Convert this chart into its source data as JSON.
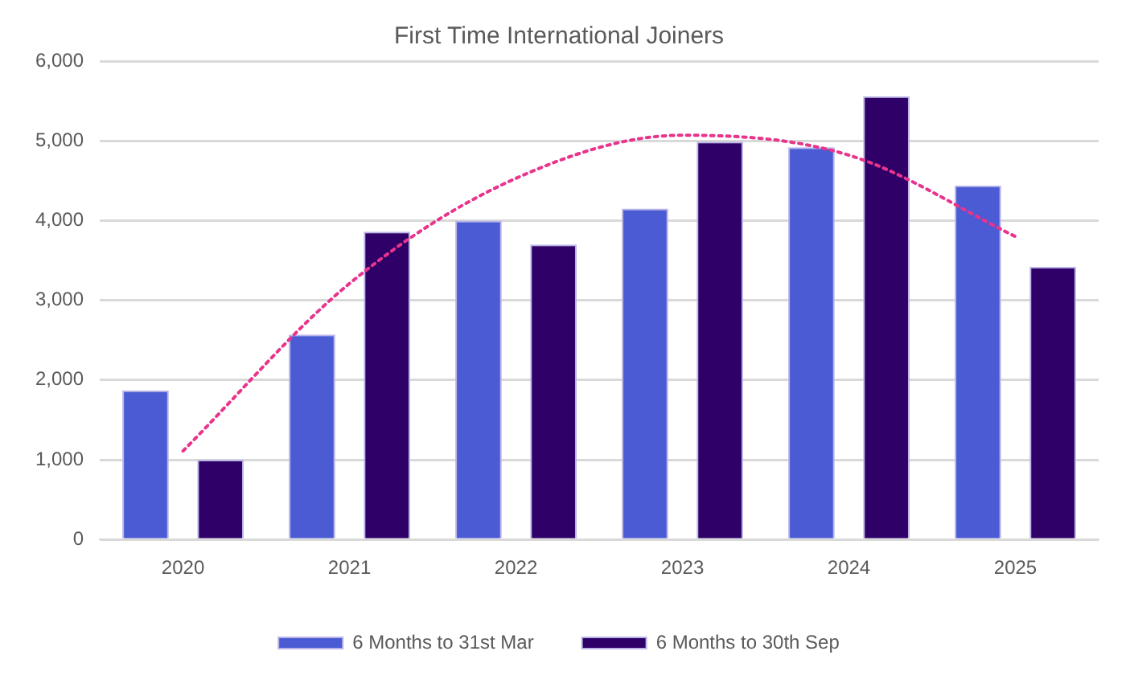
{
  "chart_data": {
    "type": "bar",
    "title": "First Time International Joiners",
    "categories": [
      "2020",
      "2021",
      "2022",
      "2023",
      "2024",
      "2025"
    ],
    "series": [
      {
        "name": "6 Months to 31st Mar",
        "color": "#4a5bd4",
        "values": [
          1870,
          2570,
          4000,
          4150,
          4920,
          4440
        ]
      },
      {
        "name": "6 Months to 30th Sep",
        "color": "#2e0068",
        "values": [
          1000,
          3860,
          3700,
          4990,
          5560,
          3420
        ]
      },
      {
        "type": "line",
        "color": "#e8348c",
        "line_style": "dotted",
        "marker": "none",
        "values": [
          1110,
          3210,
          4530,
          5070,
          4820,
          3800
        ]
      }
    ],
    "ylim": [
      0,
      6000
    ],
    "yticks": [
      {
        "value": 0,
        "label": "0"
      },
      {
        "value": 1000,
        "label": "1,000"
      },
      {
        "value": 2000,
        "label": "2,000"
      },
      {
        "value": 3000,
        "label": "3,000"
      },
      {
        "value": 4000,
        "label": "4,000"
      },
      {
        "value": 5000,
        "label": "5,000"
      },
      {
        "value": 6000,
        "label": "6,000"
      }
    ],
    "grid": "y",
    "legend": "bottom"
  }
}
